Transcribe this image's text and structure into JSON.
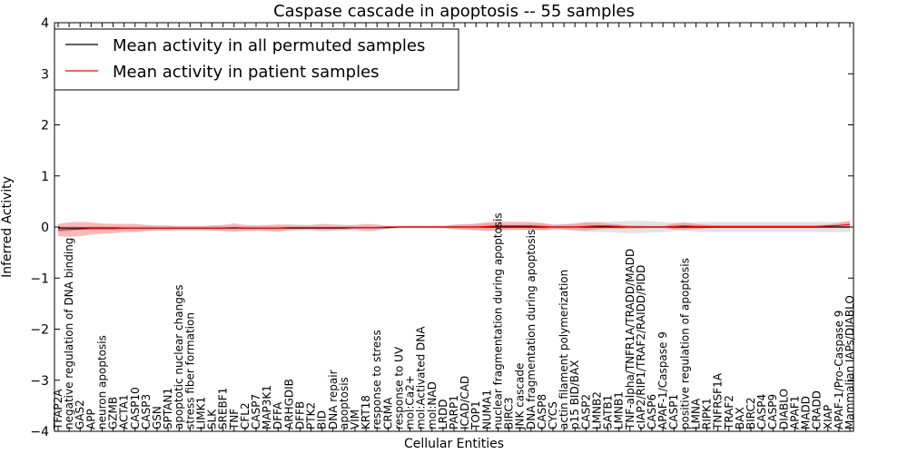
{
  "chart_data": {
    "type": "line",
    "title": "Caspase cascade in apoptosis -- 55 samples",
    "xlabel": "Cellular Entities",
    "ylabel": "Inferred Activity",
    "ylim": [
      -4,
      4
    ],
    "yticks": [
      -4,
      -3,
      -2,
      -1,
      0,
      1,
      2,
      3,
      4
    ],
    "grid": false,
    "legend_position": "top-left",
    "categories": [
      "TFAP2A",
      "negative regulation of DNA binding",
      "GAS2",
      "APP",
      "neuron apoptosis",
      "GZMB",
      "ACTA1",
      "CASP10",
      "CASP3",
      "GSN",
      "SPTAN1",
      "apoptotic nuclear changes",
      "stress fiber formation",
      "LIMK1",
      "SLK",
      "SREBF1",
      "TNF",
      "CFL2",
      "CASP7",
      "MAP3K1",
      "DFFA",
      "ARHGDIB",
      "DFFB",
      "PTK2",
      "BID",
      "DNA repair",
      "apoptosis",
      "VIM",
      "KRT18",
      "response to stress",
      "CRMA",
      "response to UV",
      "mol:Ca2+",
      "mol:Activated DNA",
      "mol:NAD",
      "LRDD",
      "PARP1",
      "ICAD/CAD",
      "TOP1",
      "NUMA1",
      "nuclear fragmentation during apoptosis",
      "BIRC3",
      "JNK cascade",
      "DNA fragmentation during apoptosis",
      "CASP8",
      "CYCS",
      "actin filament polymerization",
      "p15 BID/BAX",
      "CASP2",
      "LMNB2",
      "SATB1",
      "LMNB1",
      "TNF-alpha/TNFR1A/TRADD/MADD",
      "cIAP2/RIP1/TRAF2/RAIDD/PIDD",
      "CASP6",
      "APAF-1/Caspase 9",
      "CASP1",
      "positive regulation of apoptosis",
      "LMNA",
      "RIPK1",
      "TNFRSF1A",
      "TRAF2",
      "BAX",
      "BIRC2",
      "CASP4",
      "CASP9",
      "DIABLO",
      "APAF1",
      "MADD",
      "CRADD",
      "XIAP",
      "APAF-1/Pro-Caspase 9",
      "Mammalian IAPs/DIABLO"
    ],
    "series": [
      {
        "name": "Mean activity in all permuted samples",
        "color": "#000000",
        "band_color": "#b0b0b0",
        "values": [
          -0.02,
          -0.02,
          -0.02,
          -0.02,
          -0.02,
          -0.02,
          -0.02,
          -0.02,
          -0.02,
          -0.02,
          -0.02,
          -0.02,
          -0.02,
          -0.02,
          -0.02,
          -0.02,
          -0.02,
          -0.02,
          -0.02,
          -0.02,
          -0.02,
          -0.02,
          -0.02,
          -0.02,
          -0.02,
          -0.02,
          -0.02,
          -0.01,
          -0.01,
          -0.01,
          -0.01,
          0,
          0,
          0,
          0,
          0,
          0,
          0,
          0,
          0,
          0,
          0,
          0,
          0,
          0,
          0,
          0,
          0,
          0,
          0,
          0,
          0,
          0,
          0,
          0,
          0,
          0,
          0,
          0,
          0,
          0,
          0,
          0,
          0,
          0,
          0,
          0,
          0,
          0,
          0,
          0,
          0,
          0
        ],
        "spread": [
          0.04,
          0.04,
          0.04,
          0.04,
          0.04,
          0.04,
          0.04,
          0.04,
          0.04,
          0.04,
          0.04,
          0.04,
          0.04,
          0.04,
          0.04,
          0.04,
          0.04,
          0.04,
          0.04,
          0.04,
          0.04,
          0.04,
          0.04,
          0.04,
          0.04,
          0.04,
          0.04,
          0.03,
          0.03,
          0.03,
          0.03,
          0.03,
          0.03,
          0.03,
          0.03,
          0.03,
          0.05,
          0.06,
          0.07,
          0.08,
          0.06,
          0.05,
          0.05,
          0.06,
          0.07,
          0.06,
          0.06,
          0.08,
          0.09,
          0.1,
          0.1,
          0.11,
          0.12,
          0.12,
          0.11,
          0.1,
          0.08,
          0.08,
          0.09,
          0.1,
          0.1,
          0.1,
          0.1,
          0.1,
          0.1,
          0.1,
          0.1,
          0.1,
          0.1,
          0.1,
          0.1,
          0.1,
          0.1
        ]
      },
      {
        "name": "Mean activity in patient samples",
        "color": "#ff0000",
        "band_color": "#f08080",
        "values": [
          -0.06,
          -0.05,
          -0.04,
          -0.03,
          -0.03,
          -0.03,
          -0.02,
          -0.02,
          -0.02,
          -0.02,
          -0.02,
          -0.02,
          -0.02,
          -0.02,
          -0.02,
          -0.02,
          -0.01,
          -0.02,
          -0.02,
          -0.02,
          -0.02,
          -0.01,
          -0.01,
          -0.01,
          -0.01,
          -0.01,
          -0.01,
          -0.01,
          -0.01,
          -0.01,
          0,
          0,
          0,
          0,
          0,
          0,
          0,
          0,
          0,
          0.01,
          0.02,
          0.02,
          0.02,
          0.02,
          0.01,
          0,
          0,
          0,
          0.01,
          0.02,
          0.02,
          0.01,
          0,
          0,
          0,
          0,
          0.01,
          0.02,
          0.01,
          0.01,
          0.01,
          0.01,
          0.01,
          0.01,
          0.01,
          0.01,
          0.01,
          0.01,
          0.01,
          0.01,
          0.02,
          0.03,
          0.05
        ],
        "spread": [
          0.12,
          0.14,
          0.14,
          0.12,
          0.1,
          0.09,
          0.08,
          0.08,
          0.06,
          0.05,
          0.05,
          0.04,
          0.04,
          0.04,
          0.05,
          0.06,
          0.08,
          0.06,
          0.05,
          0.06,
          0.07,
          0.06,
          0.05,
          0.05,
          0.07,
          0.06,
          0.05,
          0.05,
          0.07,
          0.06,
          0.02,
          0.01,
          0.01,
          0.01,
          0.01,
          0.01,
          0.04,
          0.05,
          0.06,
          0.08,
          0.09,
          0.08,
          0.08,
          0.08,
          0.07,
          0.04,
          0.05,
          0.06,
          0.08,
          0.07,
          0.05,
          0.04,
          0.03,
          0.03,
          0.02,
          0.02,
          0.06,
          0.07,
          0.05,
          0.03,
          0.02,
          0.02,
          0.02,
          0.02,
          0.02,
          0.02,
          0.02,
          0.02,
          0.02,
          0.02,
          0.03,
          0.05,
          0.07
        ]
      }
    ]
  }
}
